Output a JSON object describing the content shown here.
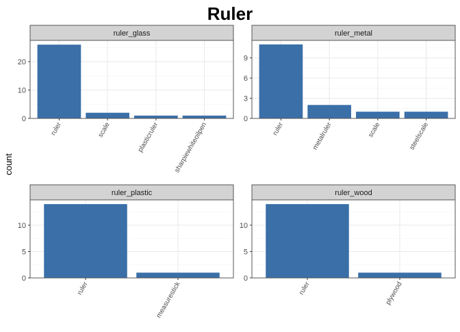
{
  "title": "Ruler",
  "ylabel": "count",
  "colors": {
    "bar": "#3a6fa8",
    "strip": "#d3d3d3",
    "panel_border": "#555555",
    "grid_major": "#ebebeb",
    "grid_minor": "#f5f5f5"
  },
  "chart_data": [
    {
      "type": "bar",
      "facet": "ruler_glass",
      "categories": [
        "ruler",
        "scale",
        "plasticruler",
        "sharpiewhiteoilpen"
      ],
      "values": [
        26,
        2,
        1,
        1
      ],
      "ylim": [
        0,
        27.5
      ],
      "yticks": [
        0,
        10,
        20
      ]
    },
    {
      "type": "bar",
      "facet": "ruler_metal",
      "categories": [
        "ruler",
        "metalruler",
        "scale",
        "steelscale"
      ],
      "values": [
        11,
        2,
        1,
        1
      ],
      "ylim": [
        0,
        11.6
      ],
      "yticks": [
        0,
        3,
        6,
        9
      ]
    },
    {
      "type": "bar",
      "facet": "ruler_plastic",
      "categories": [
        "ruler",
        "measurestick"
      ],
      "values": [
        14,
        1
      ],
      "ylim": [
        0,
        14.8
      ],
      "yticks": [
        0,
        5,
        10
      ]
    },
    {
      "type": "bar",
      "facet": "ruler_wood",
      "categories": [
        "ruler",
        "plywood"
      ],
      "values": [
        14,
        1
      ],
      "ylim": [
        0,
        14.8
      ],
      "yticks": [
        0,
        5,
        10
      ]
    }
  ]
}
